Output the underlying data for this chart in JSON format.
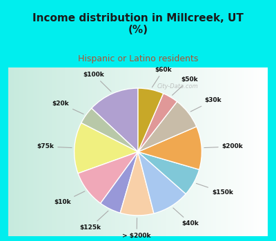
{
  "title": "Income distribution in Millcreek, UT\n(%)",
  "subtitle": "Hispanic or Latino residents",
  "title_color": "#1a1a1a",
  "subtitle_color": "#b05030",
  "bg_cyan": "#00eeee",
  "watermark": "City-Data.com",
  "labels": [
    "$100k",
    "$20k",
    "$75k",
    "$10k",
    "$125k",
    "> $200k",
    "$40k",
    "$150k",
    "$200k",
    "$30k",
    "$50k",
    "$60k"
  ],
  "values": [
    13.0,
    4.5,
    13.0,
    9.5,
    5.5,
    8.5,
    9.5,
    7.0,
    11.0,
    8.0,
    4.0,
    6.5
  ],
  "colors": [
    "#b0a0d0",
    "#b8c8a8",
    "#f0f080",
    "#f0a8b8",
    "#9898d8",
    "#f8d0a8",
    "#a8c8f0",
    "#80c8d8",
    "#f0a850",
    "#c8bca8",
    "#e09898",
    "#c8a828"
  ],
  "startangle": 90,
  "label_distance": 1.32,
  "title_fontsize": 11,
  "subtitle_fontsize": 9
}
